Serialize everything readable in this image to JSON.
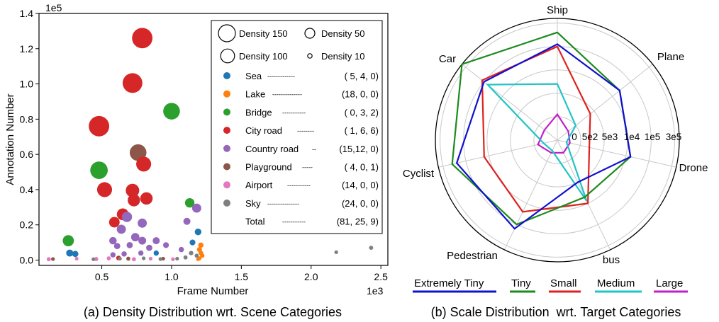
{
  "colors": {
    "Sea": "#1f77b4",
    "Lake": "#ff7f0e",
    "Bridge": "#2ca02c",
    "City road": "#d62728",
    "Country road": "#9467bd",
    "Playground": "#8c564b",
    "Airport": "#e377c2",
    "Sky": "#7f7f7f"
  },
  "chart_data": [
    {
      "type": "scatter",
      "title": "(a) Density Distribution wrt. Scene Categories",
      "xlabel": "Frame Number",
      "ylabel": "Annotation Number",
      "x_multiplier_label": "1e3",
      "y_multiplier_label": "1e5",
      "xlim": [
        0.05,
        2.55
      ],
      "ylim": [
        -0.03,
        1.4
      ],
      "x_ticks": [
        0.5,
        1.0,
        1.5,
        2.0,
        2.5
      ],
      "x_tick_labels": [
        "0.5",
        "1.0",
        "1.5",
        "2.0",
        "2.5"
      ],
      "y_ticks": [
        0.0,
        0.2,
        0.4,
        0.6,
        0.8,
        1.0,
        1.2,
        1.4
      ],
      "y_tick_labels": [
        "0.0",
        "0.2",
        "0.4",
        "0.6",
        "0.8",
        "1.0",
        "1.2",
        "1.4"
      ],
      "size_legend": [
        {
          "label": "Density 150",
          "density": 150
        },
        {
          "label": "Density 50",
          "density": 50
        },
        {
          "label": "Density 100",
          "density": 100
        },
        {
          "label": "Density 10",
          "density": 10
        }
      ],
      "legend": [
        {
          "name": "Sea",
          "dashes": "-------------",
          "counts": "( 5, 4, 0)"
        },
        {
          "name": "Lake",
          "dashes": "--------------",
          "counts": "(18, 0, 0)"
        },
        {
          "name": "Bridge",
          "dashes": "-----------",
          "counts": "( 0, 3, 2)"
        },
        {
          "name": "City road",
          "dashes": "--------",
          "counts": "( 1, 6, 6)"
        },
        {
          "name": "Country road",
          "dashes": "--",
          "counts": "(15,12, 0)"
        },
        {
          "name": "Playground",
          "dashes": "-----",
          "counts": "( 4, 0, 1)"
        },
        {
          "name": "Airport",
          "dashes": "-----------",
          "counts": "(14, 0, 0)"
        },
        {
          "name": "Sky",
          "dashes": "---------------",
          "counts": "(24, 0, 0)"
        },
        {
          "name": "Total",
          "dashes": "-----------",
          "counts": "(81, 25, 9)"
        }
      ],
      "points": [
        {
          "c": "City road",
          "x": 0.79,
          "y": 1.26,
          "d": 150
        },
        {
          "c": "City road",
          "x": 0.72,
          "y": 1.005,
          "d": 140
        },
        {
          "c": "City road",
          "x": 0.48,
          "y": 0.76,
          "d": 150
        },
        {
          "c": "City road",
          "x": 0.8,
          "y": 0.545,
          "d": 80
        },
        {
          "c": "City road",
          "x": 0.52,
          "y": 0.4,
          "d": 80
        },
        {
          "c": "City road",
          "x": 0.72,
          "y": 0.395,
          "d": 65
        },
        {
          "c": "City road",
          "x": 0.73,
          "y": 0.34,
          "d": 55
        },
        {
          "c": "City road",
          "x": 0.82,
          "y": 0.35,
          "d": 55
        },
        {
          "c": "City road",
          "x": 0.65,
          "y": 0.26,
          "d": 50
        },
        {
          "c": "City road",
          "x": 0.59,
          "y": 0.215,
          "d": 40
        },
        {
          "c": "City road",
          "x": 0.62,
          "y": 0.012,
          "d": 8
        },
        {
          "c": "Bridge",
          "x": 1.0,
          "y": 0.845,
          "d": 100
        },
        {
          "c": "Bridge",
          "x": 0.48,
          "y": 0.51,
          "d": 110
        },
        {
          "c": "Bridge",
          "x": 1.13,
          "y": 0.325,
          "d": 32
        },
        {
          "c": "Bridge",
          "x": 0.26,
          "y": 0.11,
          "d": 45
        },
        {
          "c": "Playground",
          "x": 0.76,
          "y": 0.61,
          "d": 100
        },
        {
          "c": "Playground",
          "x": 0.69,
          "y": 0.008,
          "d": 6
        },
        {
          "c": "Playground",
          "x": 0.94,
          "y": 0.008,
          "d": 5
        },
        {
          "c": "Playground",
          "x": 0.15,
          "y": 0.006,
          "d": 5
        },
        {
          "c": "Country road",
          "x": 1.18,
          "y": 0.295,
          "d": 30
        },
        {
          "c": "Country road",
          "x": 0.68,
          "y": 0.245,
          "d": 38
        },
        {
          "c": "Country road",
          "x": 0.79,
          "y": 0.21,
          "d": 30
        },
        {
          "c": "Country road",
          "x": 0.64,
          "y": 0.175,
          "d": 30
        },
        {
          "c": "Country road",
          "x": 1.11,
          "y": 0.22,
          "d": 18
        },
        {
          "c": "Country road",
          "x": 0.74,
          "y": 0.13,
          "d": 25
        },
        {
          "c": "Country road",
          "x": 0.58,
          "y": 0.11,
          "d": 20
        },
        {
          "c": "Country road",
          "x": 0.79,
          "y": 0.11,
          "d": 22
        },
        {
          "c": "Country road",
          "x": 0.89,
          "y": 0.11,
          "d": 18
        },
        {
          "c": "Country road",
          "x": 0.61,
          "y": 0.08,
          "d": 14
        },
        {
          "c": "Country road",
          "x": 0.7,
          "y": 0.085,
          "d": 14
        },
        {
          "c": "Country road",
          "x": 0.84,
          "y": 0.07,
          "d": 14
        },
        {
          "c": "Country road",
          "x": 0.96,
          "y": 0.085,
          "d": 12
        },
        {
          "c": "Country road",
          "x": 1.07,
          "y": 0.06,
          "d": 10
        },
        {
          "c": "Country road",
          "x": 0.58,
          "y": 0.03,
          "d": 10
        },
        {
          "c": "Country road",
          "x": 0.66,
          "y": 0.035,
          "d": 10
        },
        {
          "c": "Country road",
          "x": 0.78,
          "y": 0.04,
          "d": 10
        },
        {
          "c": "Sea",
          "x": 1.19,
          "y": 0.16,
          "d": 16
        },
        {
          "c": "Sea",
          "x": 1.15,
          "y": 0.1,
          "d": 12
        },
        {
          "c": "Sea",
          "x": 0.27,
          "y": 0.04,
          "d": 18
        },
        {
          "c": "Sea",
          "x": 0.31,
          "y": 0.035,
          "d": 14
        },
        {
          "c": "Sea",
          "x": 0.89,
          "y": 0.04,
          "d": 10
        },
        {
          "c": "Lake",
          "x": 1.21,
          "y": 0.085,
          "d": 10
        },
        {
          "c": "Lake",
          "x": 1.2,
          "y": 0.06,
          "d": 9
        },
        {
          "c": "Lake",
          "x": 1.21,
          "y": 0.04,
          "d": 8
        },
        {
          "c": "Lake",
          "x": 1.22,
          "y": 0.025,
          "d": 7
        },
        {
          "c": "Lake",
          "x": 1.2,
          "y": 0.01,
          "d": 6
        },
        {
          "c": "Lake",
          "x": 1.19,
          "y": 0.005,
          "d": 5
        },
        {
          "c": "Airport",
          "x": 0.12,
          "y": 0.005,
          "d": 6
        },
        {
          "c": "Airport",
          "x": 0.32,
          "y": 0.008,
          "d": 5
        },
        {
          "c": "Airport",
          "x": 0.46,
          "y": 0.006,
          "d": 6
        },
        {
          "c": "Airport",
          "x": 0.55,
          "y": 0.01,
          "d": 6
        },
        {
          "c": "Airport",
          "x": 0.73,
          "y": 0.005,
          "d": 6
        },
        {
          "c": "Airport",
          "x": 0.85,
          "y": 0.008,
          "d": 5
        },
        {
          "c": "Airport",
          "x": 1.01,
          "y": 0.005,
          "d": 5
        },
        {
          "c": "Sky",
          "x": 2.43,
          "y": 0.07,
          "d": 6
        },
        {
          "c": "Sky",
          "x": 2.18,
          "y": 0.045,
          "d": 5
        },
        {
          "c": "Sky",
          "x": 1.14,
          "y": 0.04,
          "d": 7
        },
        {
          "c": "Sky",
          "x": 1.18,
          "y": 0.025,
          "d": 6
        },
        {
          "c": "Sky",
          "x": 1.1,
          "y": 0.015,
          "d": 6
        },
        {
          "c": "Sky",
          "x": 0.44,
          "y": 0.005,
          "d": 5
        },
        {
          "c": "Sky",
          "x": 0.63,
          "y": 0.008,
          "d": 5
        },
        {
          "c": "Sky",
          "x": 0.8,
          "y": 0.01,
          "d": 5
        },
        {
          "c": "Sky",
          "x": 0.92,
          "y": 0.006,
          "d": 5
        },
        {
          "c": "Sky",
          "x": 1.04,
          "y": 0.008,
          "d": 5
        }
      ]
    },
    {
      "type": "radar",
      "title": "(b) Scale Distribution  wrt. Target Categories",
      "axes": [
        "Ship",
        "Plane",
        "Drone",
        "bus",
        "Pedestrian",
        "Cyclist",
        "Car"
      ],
      "ring_labels": [
        "0",
        "5e2",
        "5e3",
        "1e4",
        "1e5",
        "3e5"
      ],
      "series": [
        {
          "name": "Extremely Tiny",
          "color": "#1010d0",
          "values": [
            4.1,
            3.4,
            3.2,
            2.0,
            4.2,
            4.4,
            4.0
          ]
        },
        {
          "name": "Tiny",
          "color": "#1e8a1e",
          "values": [
            4.6,
            3.4,
            3.2,
            2.7,
            4.0,
            4.6,
            5.2
          ]
        },
        {
          "name": "Small",
          "color": "#e02020",
          "values": [
            4.0,
            1.8,
            1.4,
            3.0,
            3.4,
            3.2,
            4.1
          ]
        },
        {
          "name": "Medium",
          "color": "#22c4c4",
          "values": [
            2.4,
            1.0,
            0.4,
            2.9,
            0.5,
            0.6,
            3.8
          ]
        },
        {
          "name": "Large",
          "color": "#c020c8",
          "values": [
            1.1,
            0.6,
            0.55,
            0.6,
            0.6,
            0.85,
            0.7
          ]
        }
      ]
    }
  ]
}
